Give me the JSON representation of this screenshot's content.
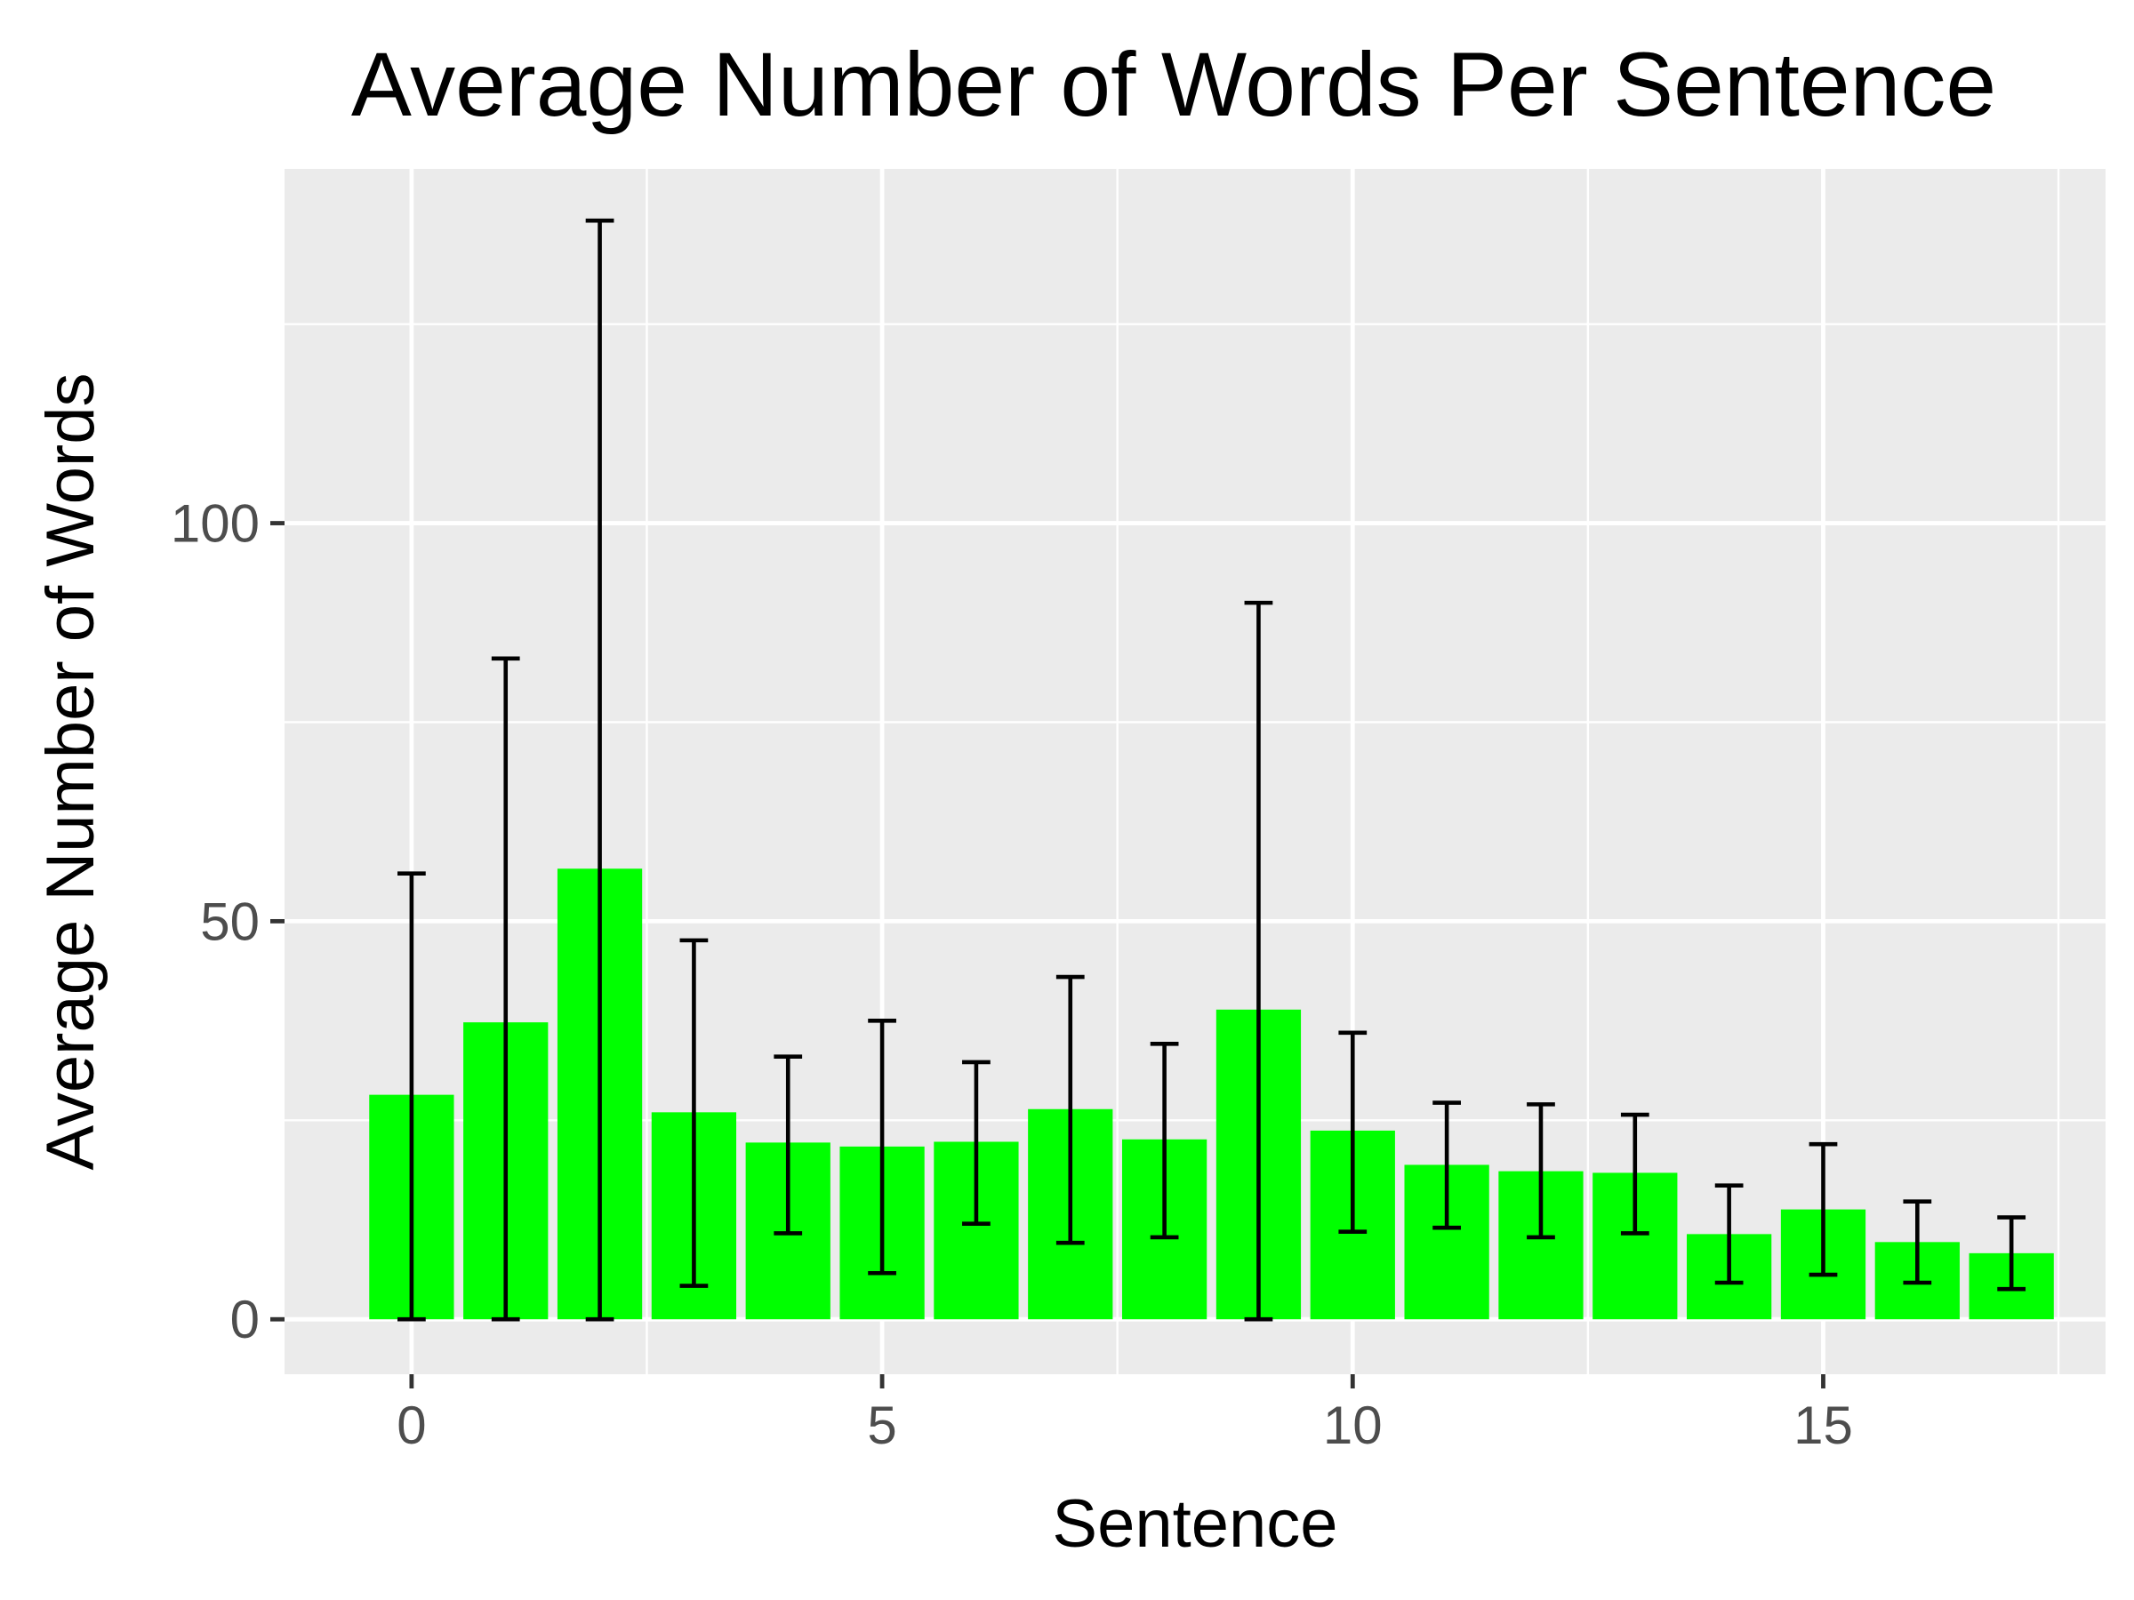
{
  "chart_data": {
    "type": "bar",
    "title": "Average Number of Words Per Sentence",
    "xlabel": "Sentence",
    "ylabel": "Average Number of Words",
    "x": [
      0,
      1,
      2,
      3,
      4,
      5,
      6,
      7,
      8,
      9,
      10,
      11,
      12,
      13,
      14,
      15,
      16,
      17
    ],
    "values": [
      28.2,
      37.3,
      56.6,
      26.0,
      22.2,
      21.7,
      22.3,
      26.4,
      22.6,
      38.9,
      23.7,
      19.4,
      18.6,
      18.4,
      10.7,
      13.8,
      9.7,
      8.3
    ],
    "error_low": [
      0,
      0,
      0,
      4.2,
      10.8,
      5.8,
      12.0,
      9.6,
      10.3,
      0,
      11.0,
      11.5,
      10.3,
      10.8,
      4.6,
      5.6,
      4.6,
      3.8
    ],
    "error_high": [
      56.0,
      83.0,
      138.0,
      47.6,
      33.0,
      37.5,
      32.3,
      43.0,
      34.6,
      90.0,
      36.0,
      27.2,
      27.0,
      25.7,
      16.8,
      22.0,
      14.8,
      12.8
    ],
    "xlim": [
      -1.35,
      18.0
    ],
    "ylim": [
      -6.9,
      144.5
    ],
    "x_ticks": [
      0,
      5,
      10,
      15
    ],
    "x_tick_labels": [
      "0",
      "5",
      "10",
      "15"
    ],
    "y_ticks": [
      0,
      50,
      100
    ],
    "y_tick_labels": [
      "0",
      "50",
      "100"
    ],
    "grid": true,
    "legend": "none",
    "colors": {
      "bar": "#00ff00",
      "errorbar": "#000000",
      "panel_background": "#ebebeb",
      "grid_line": "#ffffff",
      "tick_label": "#4d4d4d",
      "axis_tick": "#333333"
    }
  }
}
